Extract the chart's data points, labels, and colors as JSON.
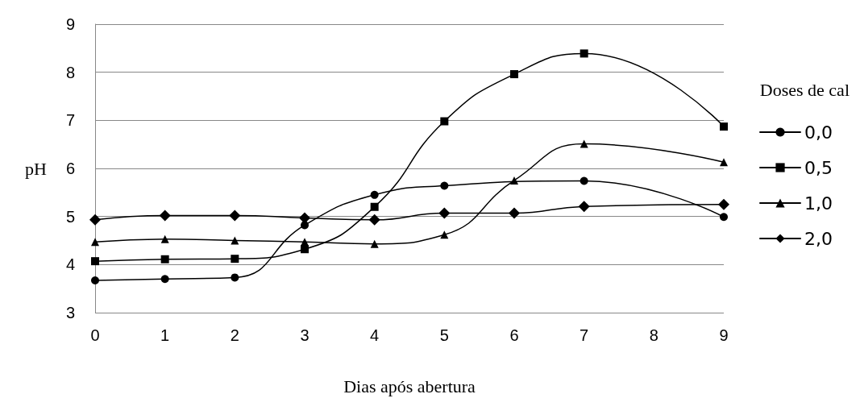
{
  "chart_data": {
    "type": "line",
    "xlabel": "Dias após abertura",
    "ylabel": "pH",
    "legend_title": "Doses de cal",
    "categories": [
      "0",
      "1",
      "2",
      "3",
      "4",
      "5",
      "6",
      "7",
      "8",
      "9"
    ],
    "series": [
      {
        "name": "0,0",
        "color": "#000000",
        "marker": "circle",
        "values": [
          3.67,
          3.7,
          3.73,
          4.82,
          5.45,
          5.64,
          null,
          5.74,
          null,
          4.99
        ]
      },
      {
        "name": "0,5",
        "color": "#000000",
        "marker": "square",
        "values": [
          4.07,
          4.11,
          4.12,
          4.32,
          5.2,
          6.98,
          7.96,
          8.39,
          null,
          6.87
        ]
      },
      {
        "name": "1,0",
        "color": "#000000",
        "marker": "triangle",
        "values": [
          4.47,
          4.53,
          4.5,
          4.47,
          4.43,
          4.62,
          5.75,
          6.51,
          null,
          6.13
        ]
      },
      {
        "name": "2,0",
        "color": "#000000",
        "marker": "diamond",
        "values": [
          4.93,
          5.02,
          5.02,
          4.97,
          4.93,
          5.07,
          5.07,
          5.21,
          null,
          5.25
        ]
      }
    ],
    "ylim": [
      3,
      9
    ],
    "yticks": [
      3,
      4,
      5,
      6,
      7,
      8,
      9
    ],
    "grid": "y",
    "legend": "right",
    "line_style": "solid"
  }
}
